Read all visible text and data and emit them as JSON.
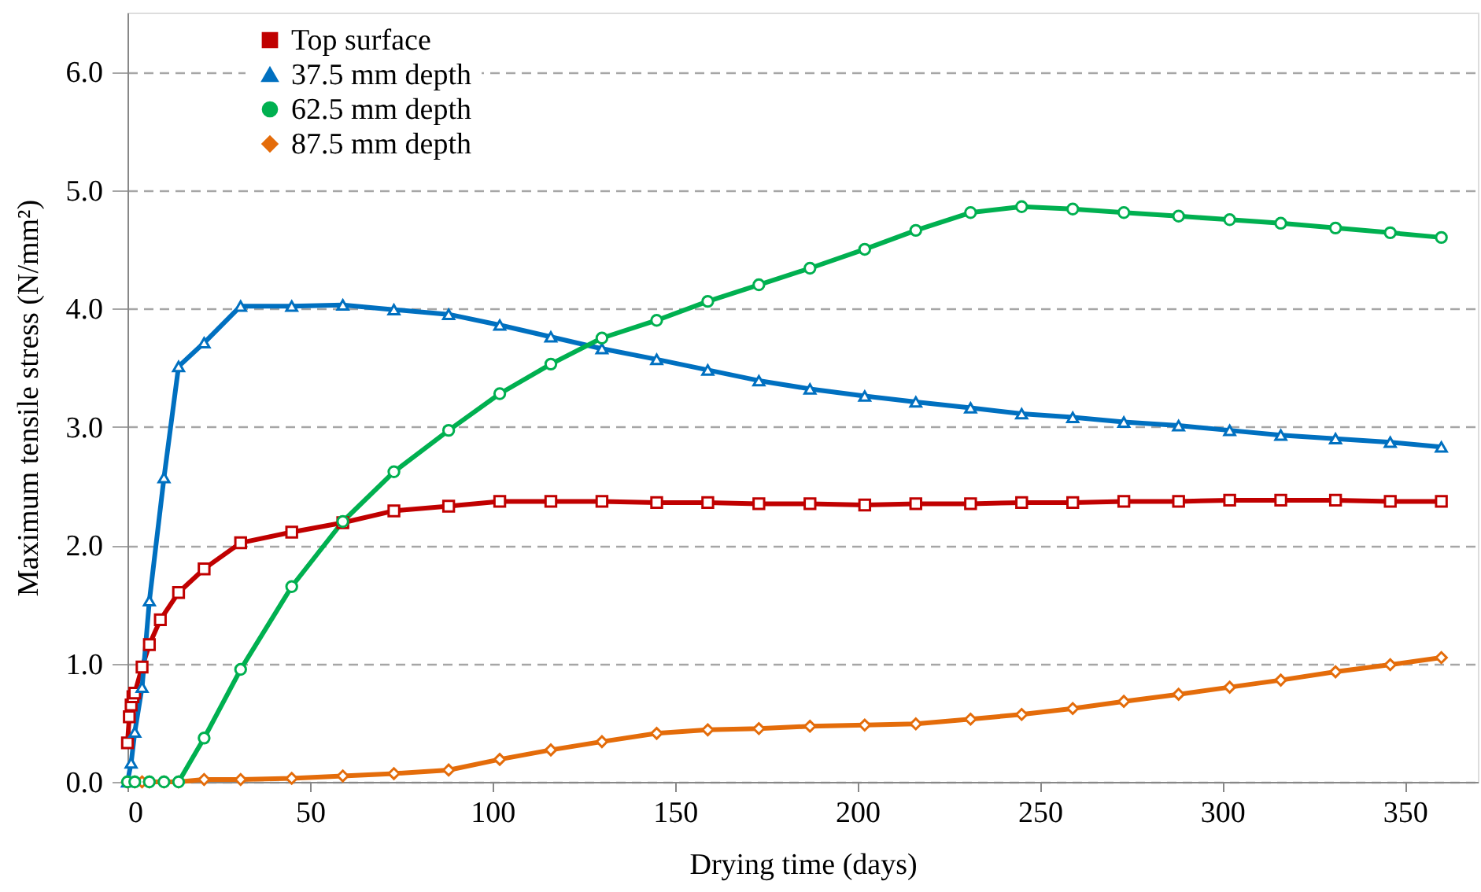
{
  "chart_data": {
    "type": "line",
    "xlabel": "Drying time (days)",
    "ylabel": "Maximum tensile stress (N/mm²)",
    "xlim": [
      0,
      370
    ],
    "xticks": [
      0,
      50,
      100,
      150,
      200,
      250,
      300,
      350
    ],
    "ylim": [
      0,
      6.5
    ],
    "yticks": [
      {
        "value": 0,
        "label": "0.0"
      },
      {
        "value": 1,
        "label": "1.0"
      },
      {
        "value": 2,
        "label": "2.0"
      },
      {
        "value": 3,
        "label": "3.0"
      },
      {
        "value": 4,
        "label": "4.0"
      },
      {
        "value": 5,
        "label": "5.0"
      },
      {
        "value": 6,
        "label": "6.0"
      }
    ],
    "grid": "y",
    "legend": "top left",
    "line_style": "solid",
    "series": [
      {
        "name": "Top surface",
        "color": "#c00000",
        "marker": "square",
        "x": [
          0,
          0.5,
          1,
          1.5,
          2,
          4,
          6,
          9,
          14,
          21,
          31,
          45,
          59,
          73,
          88,
          102,
          116,
          130,
          145,
          159,
          173,
          187,
          202,
          216,
          231,
          245,
          259,
          273,
          288,
          302,
          316,
          331,
          346,
          360
        ],
        "values": [
          0.33,
          0.55,
          0.65,
          0.72,
          0.75,
          0.97,
          1.16,
          1.37,
          1.6,
          1.8,
          2.02,
          2.11,
          2.19,
          2.29,
          2.33,
          2.37,
          2.37,
          2.37,
          2.36,
          2.36,
          2.35,
          2.35,
          2.34,
          2.35,
          2.35,
          2.36,
          2.36,
          2.37,
          2.37,
          2.38,
          2.38,
          2.38,
          2.37,
          2.37
        ]
      },
      {
        "name": "37.5 mm depth",
        "color": "#0070c0",
        "marker": "triangle",
        "x": [
          0,
          1,
          2,
          4,
          6,
          10,
          14,
          21,
          31,
          45,
          59,
          73,
          88,
          102,
          116,
          130,
          145,
          159,
          173,
          187,
          202,
          216,
          231,
          245,
          259,
          273,
          288,
          302,
          316,
          331,
          346,
          360
        ],
        "values": [
          0,
          0.16,
          0.42,
          0.8,
          1.53,
          2.57,
          3.51,
          3.71,
          4.02,
          4.02,
          4.03,
          3.99,
          3.95,
          3.86,
          3.76,
          3.66,
          3.57,
          3.48,
          3.39,
          3.32,
          3.26,
          3.21,
          3.16,
          3.11,
          3.08,
          3.04,
          3.01,
          2.97,
          2.93,
          2.9,
          2.87,
          2.83
        ]
      },
      {
        "name": "62.5 mm depth",
        "color": "#00b050",
        "marker": "circle",
        "x": [
          0,
          2,
          6,
          10,
          14,
          21,
          31,
          45,
          59,
          73,
          88,
          102,
          116,
          130,
          145,
          159,
          173,
          187,
          202,
          216,
          231,
          245,
          259,
          273,
          288,
          302,
          316,
          331,
          346,
          360
        ],
        "values": [
          0,
          0,
          0,
          0,
          0,
          0.37,
          0.95,
          1.65,
          2.2,
          2.62,
          2.97,
          3.28,
          3.53,
          3.75,
          3.9,
          4.06,
          4.2,
          4.34,
          4.5,
          4.66,
          4.81,
          4.86,
          4.84,
          4.81,
          4.78,
          4.75,
          4.72,
          4.68,
          4.64,
          4.6
        ]
      },
      {
        "name": "87.5 mm depth",
        "color": "#e46c0a",
        "marker": "diamond",
        "x": [
          0,
          2,
          4,
          6,
          10,
          14,
          21,
          31,
          45,
          59,
          73,
          88,
          102,
          116,
          130,
          145,
          159,
          173,
          187,
          202,
          216,
          231,
          245,
          259,
          273,
          288,
          302,
          316,
          331,
          346,
          360
        ],
        "values": [
          0,
          0,
          0,
          0,
          0,
          0,
          0.02,
          0.02,
          0.03,
          0.05,
          0.07,
          0.1,
          0.19,
          0.27,
          0.34,
          0.41,
          0.44,
          0.45,
          0.47,
          0.48,
          0.49,
          0.53,
          0.57,
          0.62,
          0.68,
          0.74,
          0.8,
          0.86,
          0.93,
          0.99,
          1.05
        ]
      }
    ]
  }
}
